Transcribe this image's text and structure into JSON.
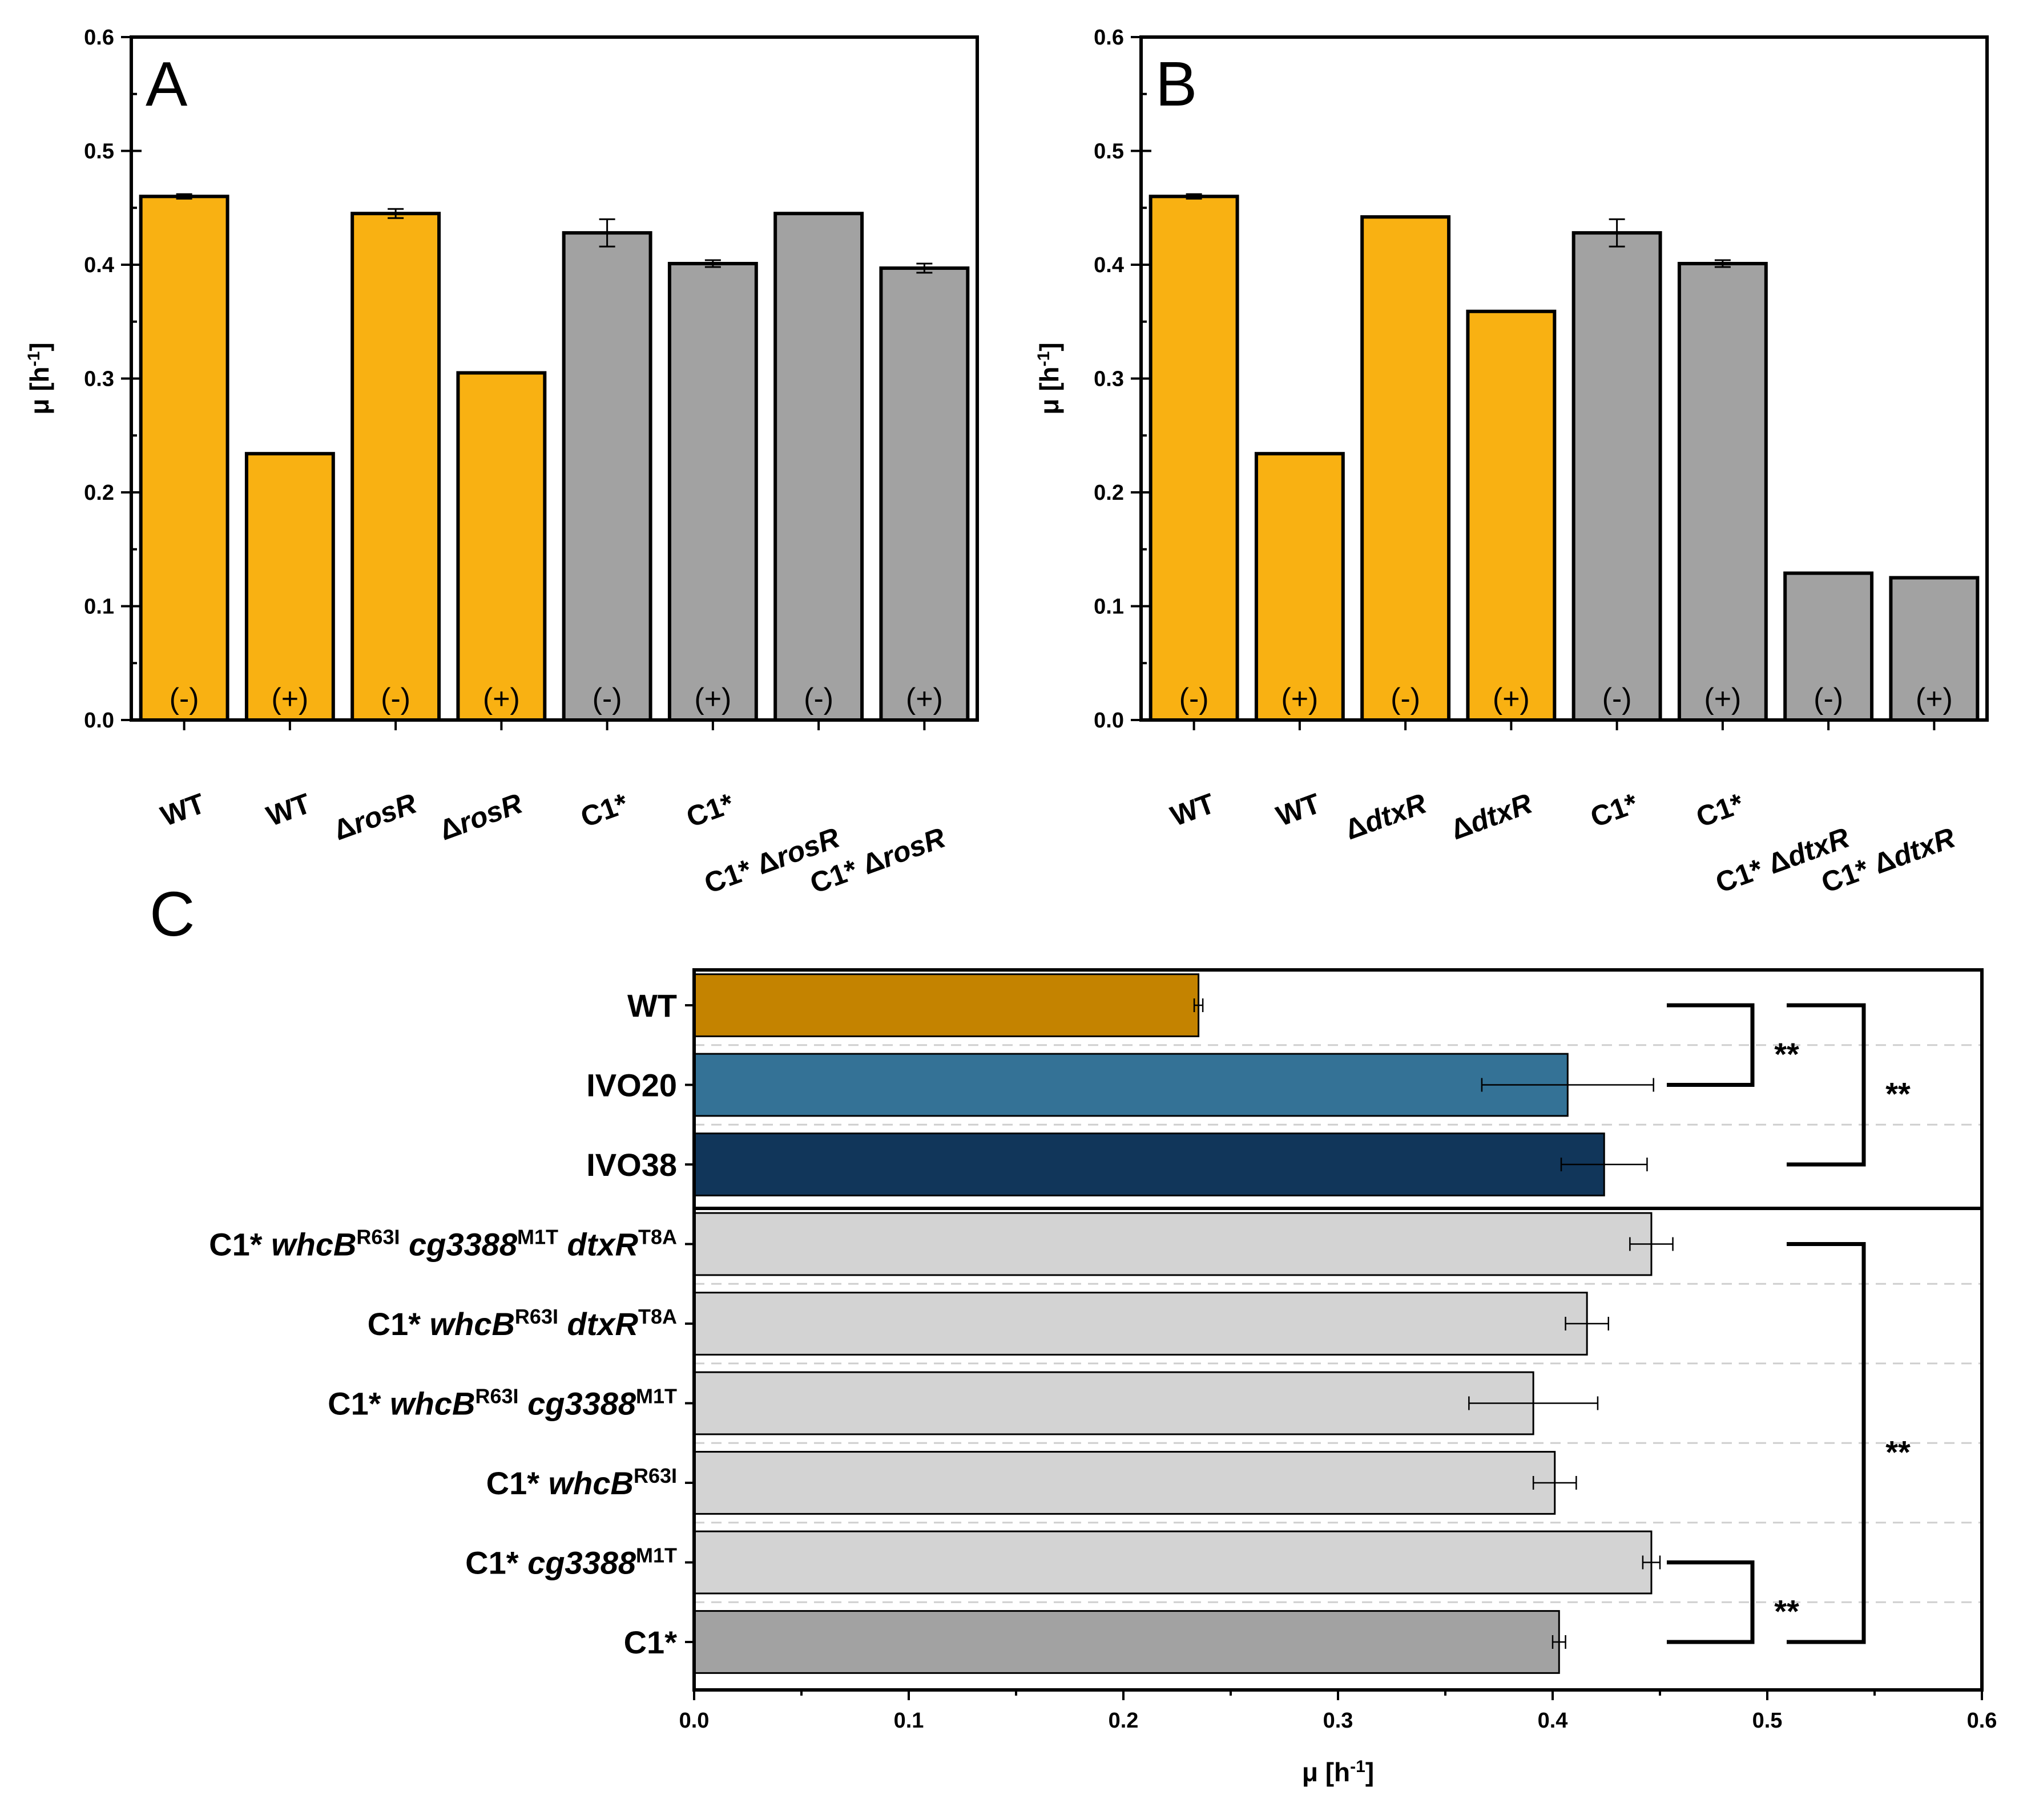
{
  "colors": {
    "orange": "#F9B112",
    "gray": "#A2A2A2",
    "wt_c": "#C48300",
    "ivo20": "#347296",
    "ivo38": "#11365A",
    "light": "#D3D3D3",
    "c1": "#A2A2A2"
  },
  "chart_data": [
    {
      "id": "A",
      "panel_label": "A",
      "type": "bar",
      "orientation": "vertical",
      "ylabel": "μ [h",
      "ylabel_sup": "-1",
      "ylabel_tail": "]",
      "ylim": [
        0,
        0.6
      ],
      "yticks": [
        "0.0",
        "0.1",
        "0.2",
        "0.3",
        "0.4",
        "0.5",
        "0.6"
      ],
      "categories": [
        {
          "pre": "",
          "it": "",
          "post": "WT"
        },
        {
          "pre": "",
          "it": "",
          "post": "WT"
        },
        {
          "pre": "Δ",
          "it": "rosR",
          "post": ""
        },
        {
          "pre": "Δ",
          "it": "rosR",
          "post": ""
        },
        {
          "pre": "C1*",
          "it": "",
          "post": ""
        },
        {
          "pre": "C1*",
          "it": "",
          "post": ""
        },
        {
          "pre": "C1* Δ",
          "it": "rosR",
          "post": ""
        },
        {
          "pre": "C1* Δ",
          "it": "rosR",
          "post": ""
        }
      ],
      "conditions": [
        "(-)",
        "(+)",
        "(-)",
        "(+)",
        "(-)",
        "(+)",
        "(-)",
        "(+)"
      ],
      "values": [
        0.46,
        0.234,
        0.445,
        0.305,
        0.428,
        0.401,
        0.445,
        0.397
      ],
      "errors": [
        0.002,
        0,
        0.004,
        0,
        0.012,
        0.003,
        0,
        0.004
      ],
      "bar_colors": [
        "orange",
        "orange",
        "orange",
        "orange",
        "gray",
        "gray",
        "gray",
        "gray"
      ]
    },
    {
      "id": "B",
      "panel_label": "B",
      "type": "bar",
      "orientation": "vertical",
      "ylabel": "μ [h",
      "ylabel_sup": "-1",
      "ylabel_tail": "]",
      "ylim": [
        0,
        0.6
      ],
      "yticks": [
        "0.0",
        "0.1",
        "0.2",
        "0.3",
        "0.4",
        "0.5",
        "0.6"
      ],
      "categories": [
        {
          "pre": "",
          "it": "",
          "post": "WT"
        },
        {
          "pre": "",
          "it": "",
          "post": "WT"
        },
        {
          "pre": "Δ",
          "it": "dtxR",
          "post": ""
        },
        {
          "pre": "Δ",
          "it": "dtxR",
          "post": ""
        },
        {
          "pre": "C1*",
          "it": "",
          "post": ""
        },
        {
          "pre": "C1*",
          "it": "",
          "post": ""
        },
        {
          "pre": "C1* Δ",
          "it": "dtxR",
          "post": ""
        },
        {
          "pre": "C1* Δ",
          "it": "dtxR",
          "post": ""
        }
      ],
      "conditions": [
        "(-)",
        "(+)",
        "(-)",
        "(+)",
        "(-)",
        "(+)",
        "(-)",
        "(+)"
      ],
      "values": [
        0.46,
        0.234,
        0.442,
        0.359,
        0.428,
        0.401,
        0.129,
        0.125
      ],
      "errors": [
        0.002,
        0,
        0,
        0,
        0.012,
        0.003,
        0,
        0
      ],
      "bar_colors": [
        "orange",
        "orange",
        "orange",
        "orange",
        "gray",
        "gray",
        "gray",
        "gray"
      ]
    },
    {
      "id": "C",
      "panel_label": "C",
      "type": "bar",
      "orientation": "horizontal",
      "xlabel": "μ [h",
      "xlabel_sup": "-1",
      "xlabel_tail": "]",
      "xlim": [
        0,
        0.6
      ],
      "xticks": [
        "0.0",
        "0.1",
        "0.2",
        "0.3",
        "0.4",
        "0.5",
        "0.6"
      ],
      "categories": [
        [
          {
            "t": "WT"
          }
        ],
        [
          {
            "t": "IVO20"
          }
        ],
        [
          {
            "t": "IVO38"
          }
        ],
        [
          {
            "t": "C1* "
          },
          {
            "t": "whcB",
            "i": 1
          },
          {
            "t": "R63I",
            "s": 1
          },
          {
            "t": " "
          },
          {
            "t": "cg3388",
            "i": 1
          },
          {
            "t": "M1T",
            "s": 1
          },
          {
            "t": " "
          },
          {
            "t": "dtxR",
            "i": 1
          },
          {
            "t": "T8A",
            "s": 1
          }
        ],
        [
          {
            "t": "C1* "
          },
          {
            "t": "whcB",
            "i": 1
          },
          {
            "t": "R63I",
            "s": 1
          },
          {
            "t": " "
          },
          {
            "t": "dtxR",
            "i": 1
          },
          {
            "t": "T8A",
            "s": 1
          }
        ],
        [
          {
            "t": "C1* "
          },
          {
            "t": "whcB",
            "i": 1
          },
          {
            "t": "R63I",
            "s": 1
          },
          {
            "t": " "
          },
          {
            "t": "cg3388",
            "i": 1
          },
          {
            "t": "M1T",
            "s": 1
          }
        ],
        [
          {
            "t": "C1* "
          },
          {
            "t": "whcB",
            "i": 1
          },
          {
            "t": "R63I",
            "s": 1
          }
        ],
        [
          {
            "t": "C1* "
          },
          {
            "t": "cg3388",
            "i": 1
          },
          {
            "t": "M1T",
            "s": 1
          }
        ],
        [
          {
            "t": "C1*"
          }
        ]
      ],
      "values": [
        0.235,
        0.407,
        0.424,
        0.446,
        0.416,
        0.391,
        0.401,
        0.446,
        0.403
      ],
      "errors": [
        0.002,
        0.04,
        0.02,
        0.01,
        0.01,
        0.03,
        0.01,
        0.004,
        0.003
      ],
      "bar_colors": [
        "wt_c",
        "ivo20",
        "ivo38",
        "light",
        "light",
        "light",
        "light",
        "light",
        "c1"
      ],
      "significance": [
        {
          "from": 0,
          "to": 1,
          "label": "**",
          "level": 1
        },
        {
          "from": 0,
          "to": 2,
          "label": "**",
          "level": 2
        },
        {
          "from": 7,
          "to": 8,
          "label": "**",
          "level": 1
        },
        {
          "from": 3,
          "to": 8,
          "label": "**",
          "level": 2
        }
      ]
    }
  ]
}
